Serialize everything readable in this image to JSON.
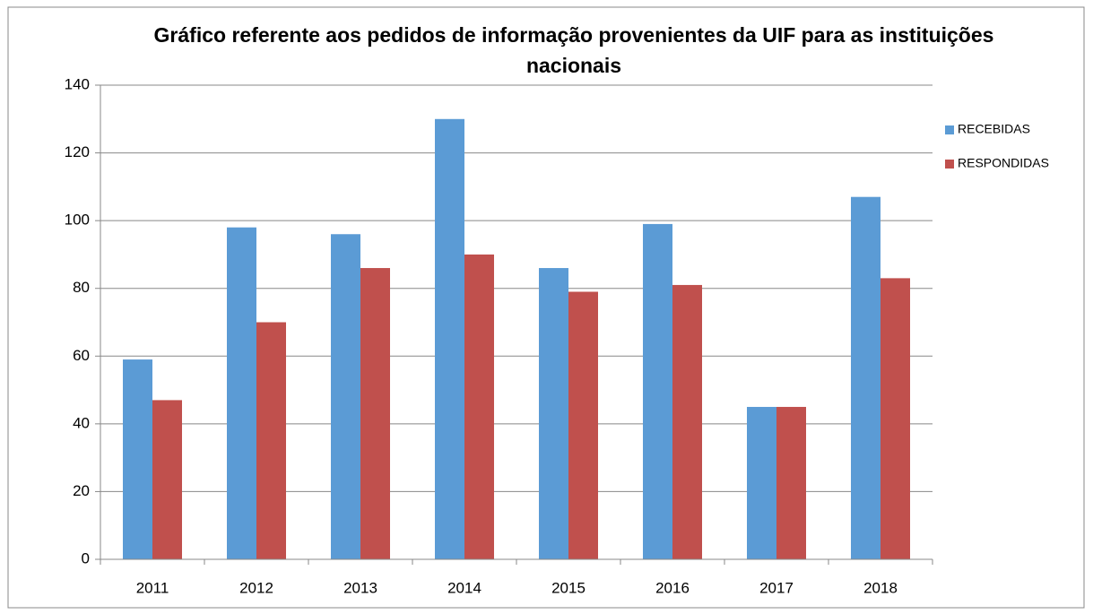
{
  "chart_data": {
    "type": "bar",
    "title": "Gráfico referente aos pedidos de informação provenientes da UIF para as instituições nacionais",
    "categories": [
      "2011",
      "2012",
      "2013",
      "2014",
      "2015",
      "2016",
      "2017",
      "2018"
    ],
    "series": [
      {
        "name": "RECEBIDAS",
        "color": "#5b9bd5",
        "values": [
          59,
          98,
          96,
          130,
          86,
          99,
          45,
          107
        ]
      },
      {
        "name": "RESPONDIDAS",
        "color": "#c0504d",
        "values": [
          47,
          70,
          86,
          90,
          79,
          81,
          45,
          83
        ]
      }
    ],
    "ylim": [
      0,
      140
    ],
    "yticks": [
      0,
      20,
      40,
      60,
      80,
      100,
      120,
      140
    ],
    "grid": true,
    "legend": "right"
  }
}
